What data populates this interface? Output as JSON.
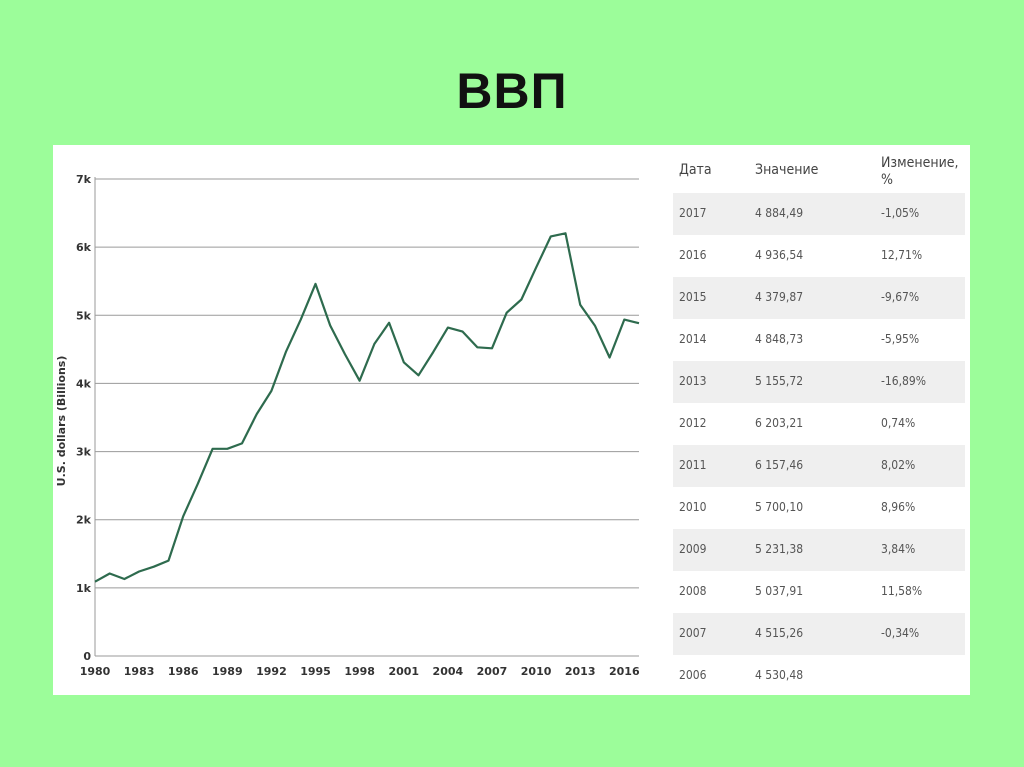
{
  "slide": {
    "title": "ВВП"
  },
  "chart_data": {
    "type": "line",
    "ylabel": "U.S. dollars (Billions)",
    "xlabel": "",
    "ylim": [
      0,
      7000
    ],
    "xlim": [
      1980,
      2017
    ],
    "yticks": [
      {
        "value": 0,
        "label": "0"
      },
      {
        "value": 1000,
        "label": "1k"
      },
      {
        "value": 2000,
        "label": "2k"
      },
      {
        "value": 3000,
        "label": "3k"
      },
      {
        "value": 4000,
        "label": "4k"
      },
      {
        "value": 5000,
        "label": "5k"
      },
      {
        "value": 6000,
        "label": "6k"
      },
      {
        "value": 7000,
        "label": "7k"
      }
    ],
    "xticks": [
      "1980",
      "1983",
      "1986",
      "1989",
      "1992",
      "1995",
      "1998",
      "2001",
      "2004",
      "2007",
      "2010",
      "2013",
      "2016"
    ],
    "grid": "horizontal",
    "line_color": "#2e6b4e",
    "series": [
      {
        "x": [
          1980,
          1981,
          1982,
          1983,
          1984,
          1985,
          1986,
          1987,
          1988,
          1989,
          1990,
          1991,
          1992,
          1993,
          1994,
          1995,
          1996,
          1997,
          1998,
          1999,
          2000,
          2001,
          2002,
          2003,
          2004,
          2005,
          2006,
          2007,
          2008,
          2009,
          2010,
          2011,
          2012,
          2013,
          2014,
          2015,
          2016,
          2017
        ],
        "values": [
          1090,
          1210,
          1130,
          1240,
          1310,
          1400,
          2050,
          2530,
          3040,
          3040,
          3120,
          3550,
          3890,
          4470,
          4940,
          5460,
          4850,
          4430,
          4040,
          4580,
          4890,
          4310,
          4120,
          4460,
          4820,
          4760,
          4530,
          4515,
          5038,
          5231,
          5700,
          6157,
          6203,
          5156,
          4849,
          4380,
          4937,
          4884
        ]
      }
    ]
  },
  "table": {
    "headers": {
      "date": "Дата",
      "value": "Значение",
      "change": "Изменение, %"
    },
    "rows": [
      {
        "date": "2017",
        "value": "4 884,49",
        "change": "-1,05%"
      },
      {
        "date": "2016",
        "value": "4 936,54",
        "change": "12,71%"
      },
      {
        "date": "2015",
        "value": "4 379,87",
        "change": "-9,67%"
      },
      {
        "date": "2014",
        "value": "4 848,73",
        "change": "-5,95%"
      },
      {
        "date": "2013",
        "value": "5 155,72",
        "change": "-16,89%"
      },
      {
        "date": "2012",
        "value": "6 203,21",
        "change": "0,74%"
      },
      {
        "date": "2011",
        "value": "6 157,46",
        "change": "8,02%"
      },
      {
        "date": "2010",
        "value": "5 700,10",
        "change": "8,96%"
      },
      {
        "date": "2009",
        "value": "5 231,38",
        "change": "3,84%"
      },
      {
        "date": "2008",
        "value": "5 037,91",
        "change": "11,58%"
      },
      {
        "date": "2007",
        "value": "4 515,26",
        "change": "-0,34%"
      },
      {
        "date": "2006",
        "value": "4 530,48",
        "change": ""
      }
    ]
  }
}
